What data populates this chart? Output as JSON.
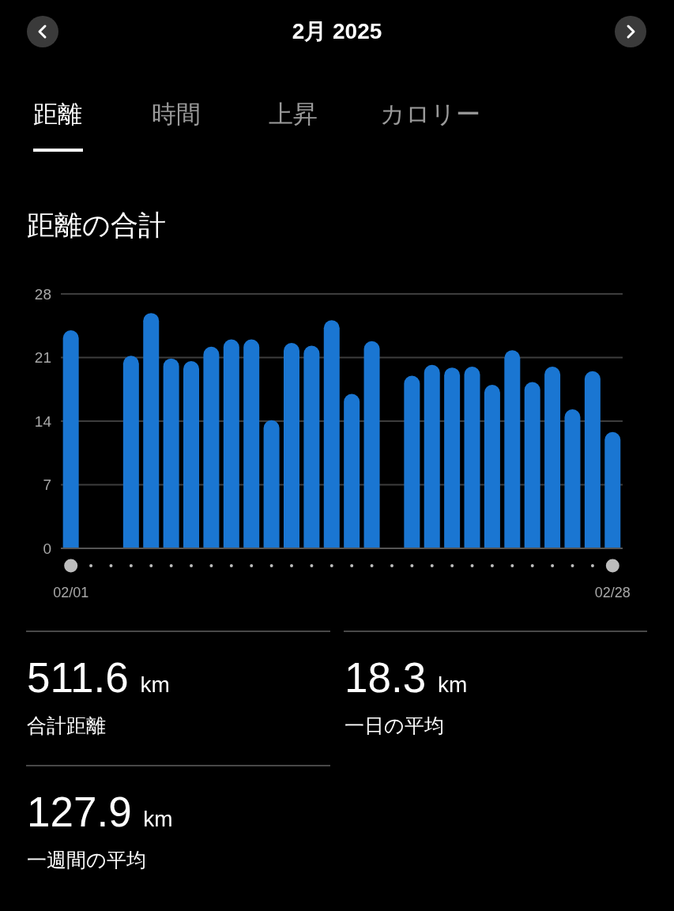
{
  "chart_data": {
    "type": "bar",
    "title": "距離の合計",
    "categories": [
      "02/01",
      null,
      null,
      null,
      null,
      null,
      null,
      null,
      null,
      null,
      null,
      null,
      null,
      null,
      null,
      null,
      null,
      null,
      null,
      null,
      null,
      null,
      null,
      null,
      null,
      null,
      null,
      "02/28"
    ],
    "values": [
      24.0,
      0,
      0,
      21.2,
      25.9,
      20.9,
      20.6,
      22.2,
      23.0,
      23.0,
      14.1,
      22.6,
      22.3,
      25.1,
      17.0,
      22.8,
      0,
      19.0,
      20.2,
      19.9,
      20.0,
      18.0,
      21.8,
      18.3,
      20.0,
      15.3,
      19.5,
      12.8
    ],
    "color": "#1a76d2",
    "ylim": [
      0,
      28
    ],
    "yticks": [
      0,
      7,
      14,
      21,
      28
    ],
    "grid": "y",
    "annotations": [
      "2月 2025",
      "距離",
      "時間",
      "上昇",
      "カロリー",
      "511.6 km",
      "合計距離",
      "18.3 km",
      "一日の平均",
      "127.9 km",
      "一週間の平均"
    ]
  }
}
